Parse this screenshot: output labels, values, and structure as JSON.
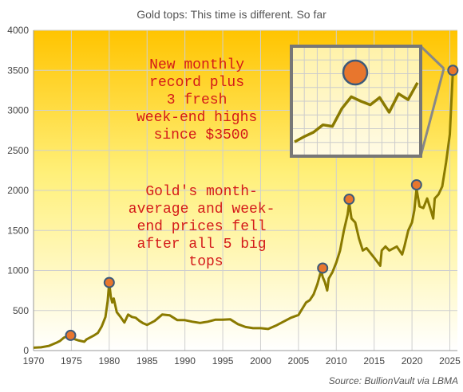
{
  "chart_data": {
    "type": "line",
    "title": "Gold tops: This time is different.  So far",
    "source": "Source: BullionVault via LBMA",
    "xlim": [
      1970,
      2026
    ],
    "ylim": [
      0,
      4000
    ],
    "x_ticks": [
      1970,
      1975,
      1980,
      1985,
      1990,
      1995,
      2000,
      2005,
      2010,
      2015,
      2020,
      2025
    ],
    "y_ticks": [
      0,
      500,
      1000,
      1500,
      2000,
      2500,
      3000,
      3500,
      4000
    ],
    "grid": true,
    "colors": {
      "line": "#8a7a00",
      "marker_fill": "#e8762d",
      "marker_stroke": "#3d5a7a",
      "annotation": "#d41a1a",
      "inset_frame": "#777777",
      "background_top": "#ffc400",
      "background_bottom": "#ffffff"
    },
    "series": [
      {
        "x": [
          1970,
          1971,
          1972,
          1973,
          1973.5,
          1974,
          1974.5,
          1975,
          1975.5,
          1976,
          1976.7,
          1977,
          1978,
          1978.5,
          1979,
          1979.5,
          1979.8,
          1980,
          1980.2,
          1980.4,
          1980.6,
          1981,
          1981.5,
          1982,
          1982.5,
          1983,
          1983.5,
          1984,
          1984.5,
          1985,
          1986,
          1987,
          1988,
          1989,
          1990,
          1991,
          1992,
          1993,
          1994,
          1995,
          1996,
          1997,
          1998,
          1999,
          2000,
          2001,
          2002,
          2003,
          2004,
          2005,
          2006,
          2006.5,
          2007,
          2007.5,
          2008,
          2008.2,
          2008.5,
          2008.8,
          2009,
          2009.5,
          2010,
          2010.5,
          2011,
          2011.5,
          2011.7,
          2012,
          2012.5,
          2013,
          2013.5,
          2014,
          2015,
          2015.8,
          2016,
          2016.5,
          2017,
          2018,
          2018.7,
          2019,
          2019.5,
          2020,
          2020.3,
          2020.6,
          2021,
          2021.5,
          2022,
          2022.5,
          2022.8,
          2023,
          2023.5,
          2024,
          2024.5,
          2025,
          2025.2,
          2025.4
        ],
        "y": [
          36,
          41,
          58,
          97,
          120,
          160,
          180,
          160,
          140,
          125,
          110,
          140,
          190,
          220,
          300,
          420,
          620,
          850,
          680,
          600,
          650,
          480,
          420,
          350,
          450,
          420,
          410,
          370,
          340,
          320,
          370,
          450,
          440,
          380,
          380,
          360,
          345,
          360,
          385,
          385,
          390,
          330,
          295,
          280,
          280,
          270,
          310,
          360,
          410,
          445,
          600,
          630,
          700,
          830,
          1000,
          920,
          850,
          750,
          900,
          980,
          1100,
          1250,
          1500,
          1700,
          1850,
          1650,
          1600,
          1400,
          1250,
          1280,
          1160,
          1060,
          1250,
          1300,
          1250,
          1300,
          1200,
          1300,
          1500,
          1600,
          1750,
          2020,
          1800,
          1780,
          1900,
          1750,
          1650,
          1900,
          1950,
          2050,
          2350,
          2700,
          3100,
          3480
        ]
      }
    ],
    "tops": [
      {
        "x": 1974.9,
        "y": 190
      },
      {
        "x": 1980.0,
        "y": 850
      },
      {
        "x": 2008.2,
        "y": 1030
      },
      {
        "x": 2011.7,
        "y": 1890
      },
      {
        "x": 2020.6,
        "y": 2070
      },
      {
        "x": 2025.4,
        "y": 3500
      }
    ],
    "annotations": [
      [
        "New monthly",
        "record plus",
        "3 fresh",
        "week-end highs",
        "since $3500"
      ],
      [
        "Gold's month-",
        "average and week-",
        "end prices fell",
        "after all 5 big",
        "tops"
      ]
    ],
    "inset": {
      "y": [
        2550,
        2620,
        2680,
        2780,
        2760,
        3000,
        3160,
        3100,
        3050,
        3150,
        2950,
        3200,
        3120,
        3350
      ]
    }
  }
}
